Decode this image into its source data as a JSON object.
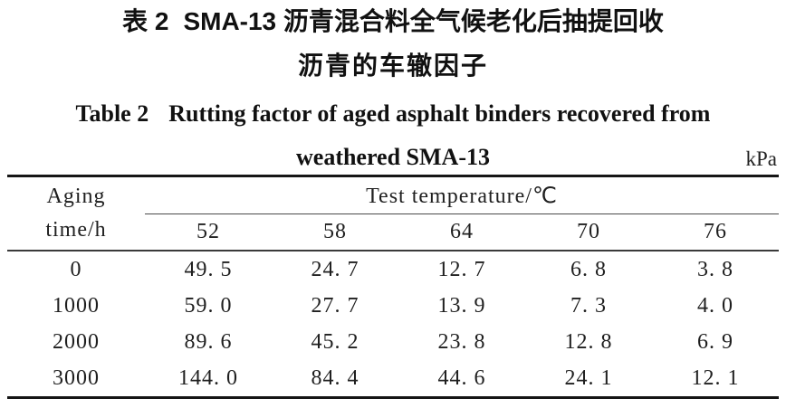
{
  "colors": {
    "text": "#1c1c1c",
    "caption_text": "#111111",
    "thick_rule": "#151515",
    "thin_rule": "#3a3a3a",
    "background": "#ffffff"
  },
  "titles": {
    "zh": {
      "label": "表 2",
      "line1_text": "SMA-13 沥青混合料全气候老化后抽提回收",
      "line2": "沥青的车辙因子"
    },
    "en": {
      "label": "Table 2",
      "line1_text": "Rutting factor of aged asphalt binders recovered from",
      "line2": "weathered SMA-13"
    },
    "unit": "kPa"
  },
  "table": {
    "row_header": "Aging\ntime/h",
    "col_group_header": "Test temperature/℃",
    "temperatures": [
      "52",
      "58",
      "64",
      "70",
      "76"
    ],
    "rows": [
      {
        "aging_time": "0",
        "values": [
          "49. 5",
          "24. 7",
          "12. 7",
          "6. 8",
          "3. 8"
        ]
      },
      {
        "aging_time": "1000",
        "values": [
          "59. 0",
          "27. 7",
          "13. 9",
          "7. 3",
          "4. 0"
        ]
      },
      {
        "aging_time": "2000",
        "values": [
          "89. 6",
          "45. 2",
          "23. 8",
          "12. 8",
          "6. 9"
        ]
      },
      {
        "aging_time": "3000",
        "values": [
          "144. 0",
          "84. 4",
          "44. 6",
          "24. 1",
          "12. 1"
        ]
      }
    ]
  }
}
